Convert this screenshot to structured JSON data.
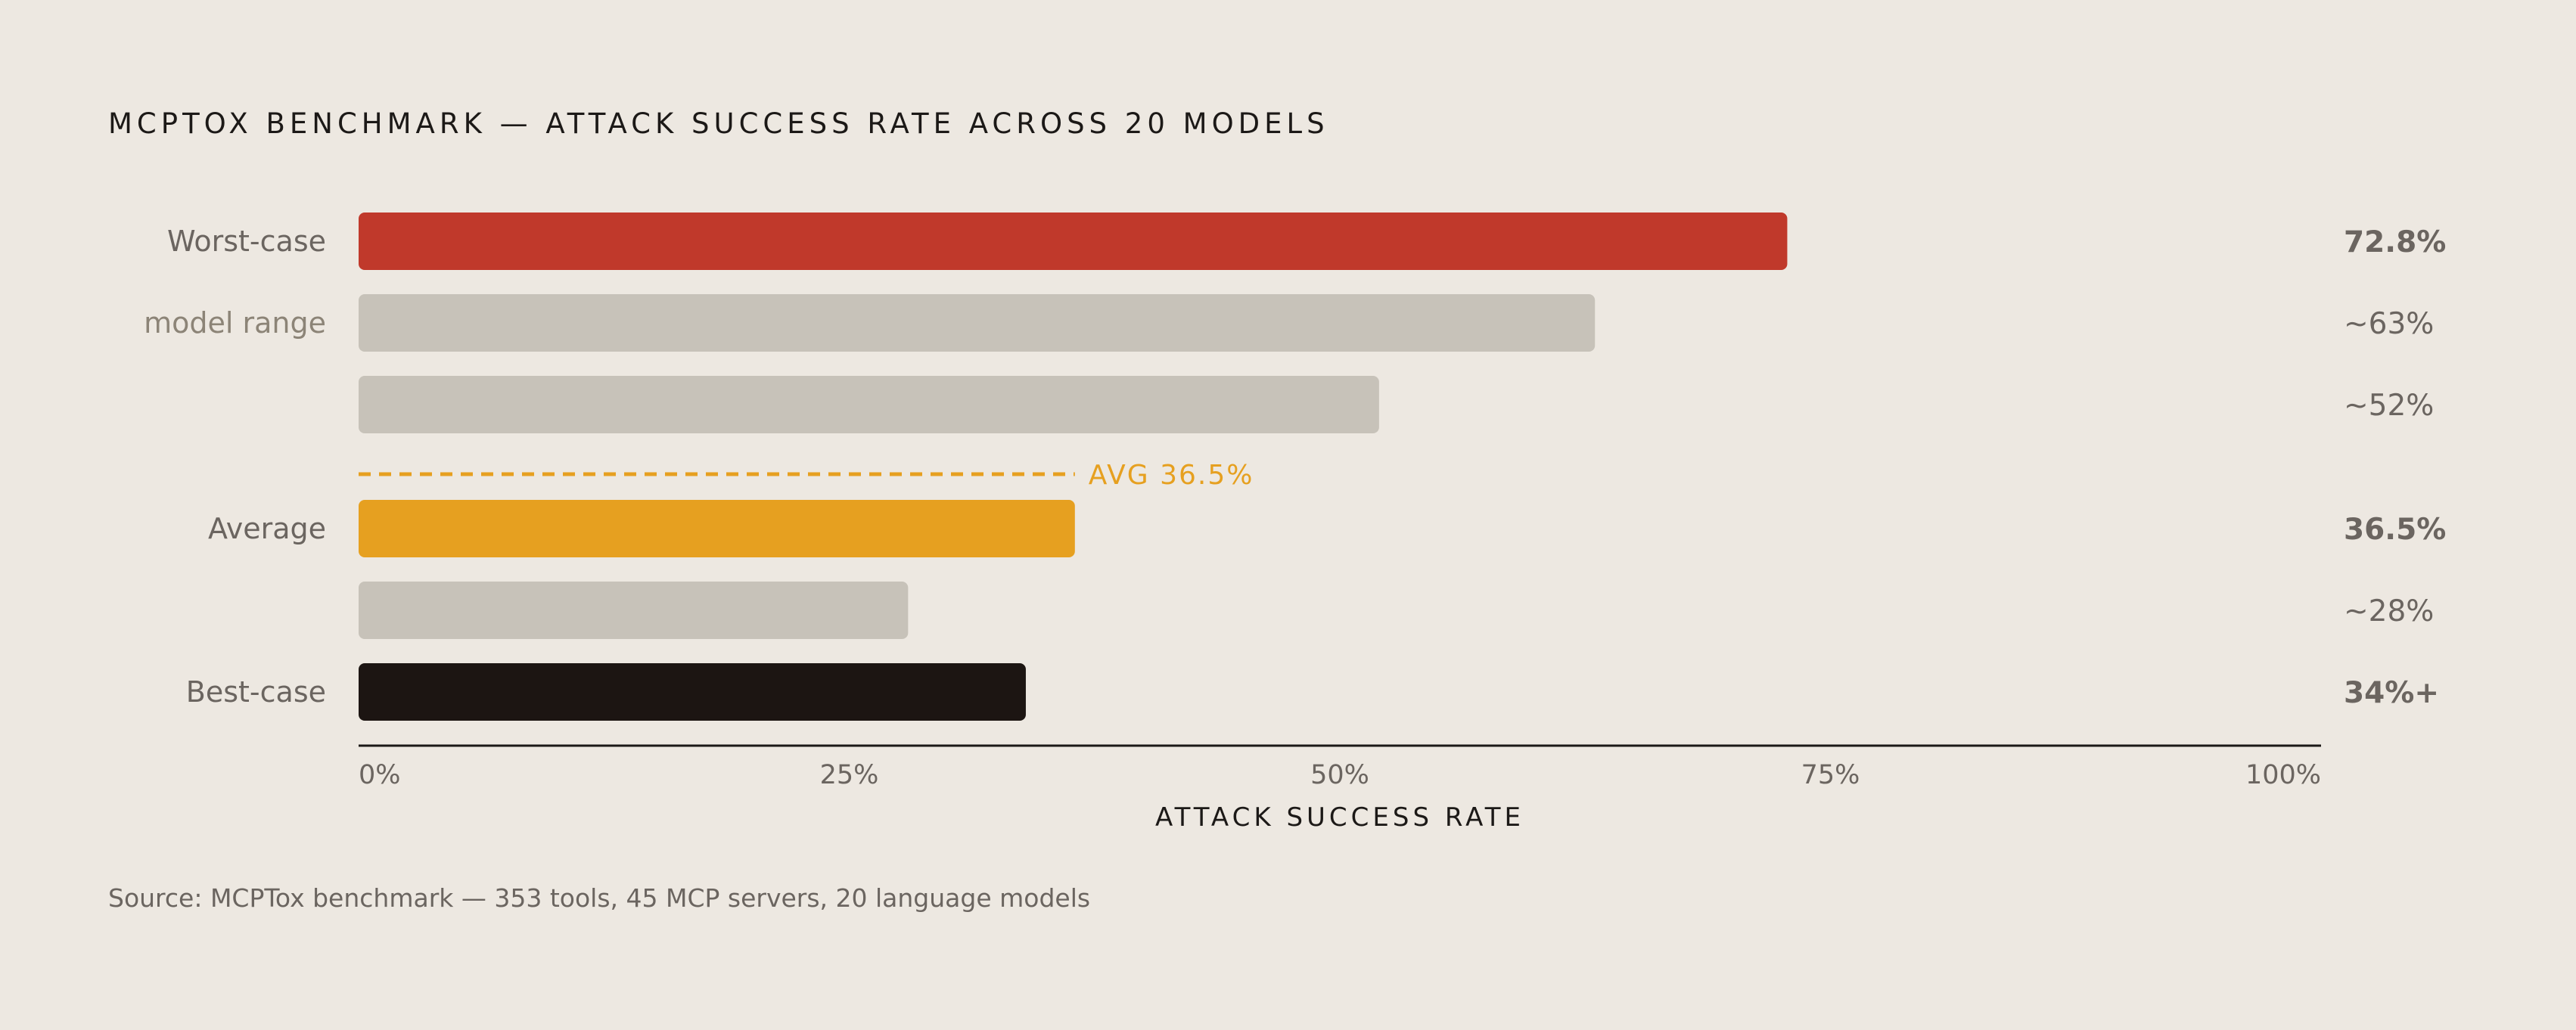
{
  "title": "MCPTOX BENCHMARK — ATTACK SUCCESS RATE ACROSS 20 MODELS",
  "source": "Source: MCPTox benchmark — 353 tools, 45 MCP servers, 20 language models",
  "colors": {
    "background": "#ede8e1",
    "worst": "#c0392b",
    "range": "#c7c2b9",
    "average": "#e6a020",
    "best": "#1c1512",
    "text": "#1c1917",
    "muted_text": "#6b6560"
  },
  "chart_data": {
    "type": "bar",
    "orientation": "horizontal",
    "xlabel": "ATTACK SUCCESS RATE",
    "xlim": [
      0,
      100
    ],
    "xticks": [
      0,
      25,
      50,
      75,
      100
    ],
    "xtick_labels": [
      "0%",
      "25%",
      "50%",
      "75%",
      "100%"
    ],
    "grid": false,
    "bars": [
      {
        "category": "Worst-case",
        "value": 72.8,
        "value_label": "72.8%",
        "role": "worst"
      },
      {
        "category": "model range",
        "value": 63,
        "value_label": "~63%",
        "role": "range"
      },
      {
        "category": "",
        "value": 52,
        "value_label": "~52%",
        "role": "range"
      },
      {
        "category": "Average",
        "value": 36.5,
        "value_label": "36.5%",
        "role": "average"
      },
      {
        "category": "",
        "value": 28,
        "value_label": "~28%",
        "role": "range"
      },
      {
        "category": "Best-case",
        "value": 34,
        "value_label": "34%+",
        "role": "best"
      }
    ],
    "reference_line": {
      "value": 36.5,
      "label": "AVG 36.5%"
    }
  }
}
